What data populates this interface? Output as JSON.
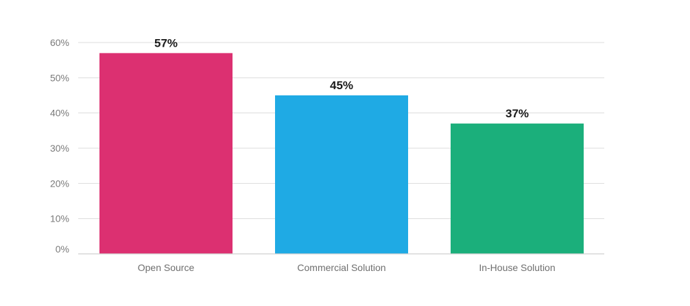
{
  "chart_data": {
    "type": "bar",
    "categories": [
      "Open Source",
      "Commercial Solution",
      "In-House Solution"
    ],
    "values": [
      57,
      45,
      37
    ],
    "data_labels": [
      "57%",
      "45%",
      "37%"
    ],
    "colors": [
      "#dc3071",
      "#1faae4",
      "#1baf7b"
    ],
    "y_ticks": [
      0,
      10,
      20,
      30,
      40,
      50,
      60
    ],
    "y_tick_labels": [
      "0%",
      "10%",
      "20%",
      "30%",
      "40%",
      "50%",
      "60%"
    ],
    "ylim": [
      0,
      60
    ],
    "grid": true,
    "legend": "none",
    "title": "",
    "xlabel": "",
    "ylabel": ""
  }
}
